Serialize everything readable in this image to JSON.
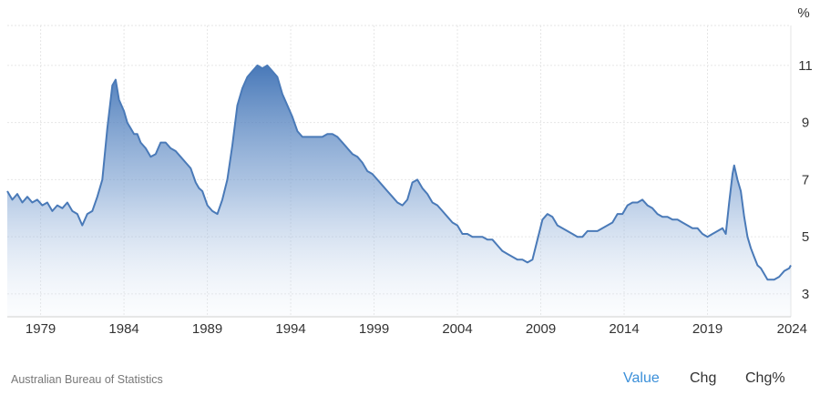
{
  "chart_data": {
    "type": "area",
    "unit_label": "%",
    "xlim": [
      1977.0,
      2024.0
    ],
    "ylim": [
      2.2,
      12.4
    ],
    "y_ticks": [
      3,
      5,
      7,
      9,
      11
    ],
    "x_ticks": [
      1979,
      1984,
      1989,
      1994,
      1999,
      2004,
      2009,
      2014,
      2019,
      2024
    ],
    "grid": true,
    "line_color": "#4a7ab8",
    "fill_top_color": "#4a7ab8",
    "series": [
      {
        "x": [
          1977.0,
          1977.3,
          1977.6,
          1977.9,
          1978.2,
          1978.5,
          1978.8,
          1979.1,
          1979.4,
          1979.7,
          1980.0,
          1980.3,
          1980.6,
          1980.9,
          1981.2,
          1981.5,
          1981.8,
          1982.1,
          1982.4,
          1982.7,
          1983.0,
          1983.3,
          1983.5,
          1983.7,
          1984.0,
          1984.2,
          1984.4,
          1984.6,
          1984.8,
          1985.0,
          1985.3,
          1985.6,
          1985.9,
          1986.2,
          1986.5,
          1986.8,
          1987.1,
          1987.4,
          1987.7,
          1988.0,
          1988.3,
          1988.5,
          1988.7,
          1989.0,
          1989.3,
          1989.6,
          1989.9,
          1990.2,
          1990.5,
          1990.8,
          1991.1,
          1991.4,
          1991.7,
          1992.0,
          1992.3,
          1992.6,
          1992.9,
          1993.2,
          1993.5,
          1993.8,
          1994.1,
          1994.4,
          1994.7,
          1995.0,
          1995.3,
          1995.6,
          1995.9,
          1996.2,
          1996.5,
          1996.8,
          1997.1,
          1997.4,
          1997.7,
          1998.0,
          1998.3,
          1998.6,
          1998.9,
          1999.2,
          1999.5,
          1999.8,
          2000.1,
          2000.4,
          2000.7,
          2001.0,
          2001.3,
          2001.6,
          2001.9,
          2002.2,
          2002.5,
          2002.8,
          2003.1,
          2003.4,
          2003.7,
          2004.0,
          2004.3,
          2004.6,
          2004.9,
          2005.2,
          2005.5,
          2005.8,
          2006.1,
          2006.4,
          2006.7,
          2007.0,
          2007.3,
          2007.6,
          2007.9,
          2008.2,
          2008.5,
          2008.8,
          2009.1,
          2009.4,
          2009.7,
          2010.0,
          2010.3,
          2010.6,
          2010.9,
          2011.2,
          2011.5,
          2011.8,
          2012.1,
          2012.4,
          2012.7,
          2013.0,
          2013.3,
          2013.6,
          2013.9,
          2014.2,
          2014.5,
          2014.8,
          2015.1,
          2015.4,
          2015.7,
          2016.0,
          2016.3,
          2016.6,
          2016.9,
          2017.2,
          2017.5,
          2017.8,
          2018.1,
          2018.4,
          2018.7,
          2019.0,
          2019.3,
          2019.6,
          2019.9,
          2020.1,
          2020.3,
          2020.5,
          2020.6,
          2020.8,
          2021.0,
          2021.2,
          2021.4,
          2021.6,
          2021.8,
          2022.0,
          2022.2,
          2022.4,
          2022.6,
          2022.8,
          2023.0,
          2023.3,
          2023.6,
          2023.9,
          2024.0
        ],
        "y": [
          6.6,
          6.3,
          6.5,
          6.2,
          6.4,
          6.2,
          6.3,
          6.1,
          6.2,
          5.9,
          6.1,
          6.0,
          6.2,
          5.9,
          5.8,
          5.4,
          5.8,
          5.9,
          6.4,
          7.0,
          8.8,
          10.3,
          10.5,
          9.8,
          9.4,
          9.0,
          8.8,
          8.6,
          8.6,
          8.3,
          8.1,
          7.8,
          7.9,
          8.3,
          8.3,
          8.1,
          8.0,
          7.8,
          7.6,
          7.4,
          6.9,
          6.7,
          6.6,
          6.1,
          5.9,
          5.8,
          6.3,
          7.0,
          8.2,
          9.6,
          10.2,
          10.6,
          10.8,
          11.0,
          10.9,
          11.0,
          10.8,
          10.6,
          10.0,
          9.6,
          9.2,
          8.7,
          8.5,
          8.5,
          8.5,
          8.5,
          8.5,
          8.6,
          8.6,
          8.5,
          8.3,
          8.1,
          7.9,
          7.8,
          7.6,
          7.3,
          7.2,
          7.0,
          6.8,
          6.6,
          6.4,
          6.2,
          6.1,
          6.3,
          6.9,
          7.0,
          6.7,
          6.5,
          6.2,
          6.1,
          5.9,
          5.7,
          5.5,
          5.4,
          5.1,
          5.1,
          5.0,
          5.0,
          5.0,
          4.9,
          4.9,
          4.7,
          4.5,
          4.4,
          4.3,
          4.2,
          4.2,
          4.1,
          4.2,
          4.9,
          5.6,
          5.8,
          5.7,
          5.4,
          5.3,
          5.2,
          5.1,
          5.0,
          5.0,
          5.2,
          5.2,
          5.2,
          5.3,
          5.4,
          5.5,
          5.8,
          5.8,
          6.1,
          6.2,
          6.2,
          6.3,
          6.1,
          6.0,
          5.8,
          5.7,
          5.7,
          5.6,
          5.6,
          5.5,
          5.4,
          5.3,
          5.3,
          5.1,
          5.0,
          5.1,
          5.2,
          5.3,
          5.1,
          6.2,
          7.2,
          7.5,
          7.0,
          6.6,
          5.7,
          5.0,
          4.6,
          4.3,
          4.0,
          3.9,
          3.7,
          3.5,
          3.5,
          3.5,
          3.6,
          3.8,
          3.9,
          4.0
        ]
      }
    ]
  },
  "footer": {
    "source": "Australian Bureau of Statistics",
    "buttons": {
      "value": "Value",
      "chg": "Chg",
      "chg_pct": "Chg%"
    }
  }
}
